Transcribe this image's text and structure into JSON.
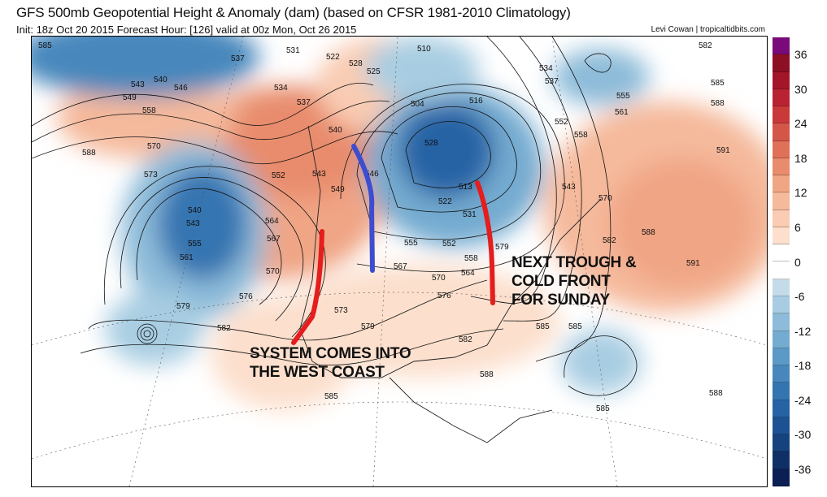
{
  "header": {
    "title": "GFS 500mb Geopotential Height & Anomaly (dam) (based on CFSR 1981-2010 Climatology)",
    "subtitle": "Init: 18z Oct 20 2015   Forecast Hour: [126]   valid at 00z Mon, Oct 26 2015",
    "credit": "Levi Cowan | tropicaltidbits.com"
  },
  "colorbar": {
    "labels": [
      "36",
      "30",
      "24",
      "18",
      "12",
      "6",
      "0",
      "-6",
      "-12",
      "-18",
      "-24",
      "-30",
      "-36"
    ],
    "colors": [
      "#7a0a7a",
      "#8c0f24",
      "#a3162a",
      "#b92331",
      "#c9393a",
      "#d45649",
      "#df7159",
      "#e88c6d",
      "#f0a585",
      "#f5b99b",
      "#f9ccb3",
      "#fcdfcc",
      "#ffffff",
      "#ffffff",
      "#c4dce9",
      "#a8cde2",
      "#8dbbd9",
      "#74abd0",
      "#5b99c6",
      "#4787bc",
      "#3474b1",
      "#2663a5",
      "#1c5293",
      "#16427e",
      "#102f66",
      "#0b1f55"
    ]
  },
  "contour_labels": [
    "585",
    "537",
    "531",
    "522",
    "528",
    "525",
    "510",
    "534",
    "537",
    "582",
    "543",
    "540",
    "546",
    "549",
    "558",
    "534",
    "537",
    "540",
    "504",
    "516",
    "552",
    "555",
    "561",
    "585",
    "588",
    "588",
    "570",
    "573",
    "552",
    "543",
    "549",
    "546",
    "528",
    "558",
    "591",
    "540",
    "543",
    "555",
    "561",
    "564",
    "567",
    "513",
    "522",
    "531",
    "543",
    "570",
    "582",
    "588",
    "591",
    "570",
    "576",
    "567",
    "555",
    "558",
    "570",
    "552",
    "564",
    "576",
    "573",
    "579",
    "579",
    "582",
    "585",
    "582",
    "579",
    "585",
    "585",
    "588",
    "588",
    "585"
  ],
  "annotations": {
    "east": [
      "NEXT TROUGH &",
      "COLD FRONT",
      "FOR SUNDAY"
    ],
    "west": [
      "SYSTEM COMES INTO",
      "THE WEST COAST"
    ]
  }
}
